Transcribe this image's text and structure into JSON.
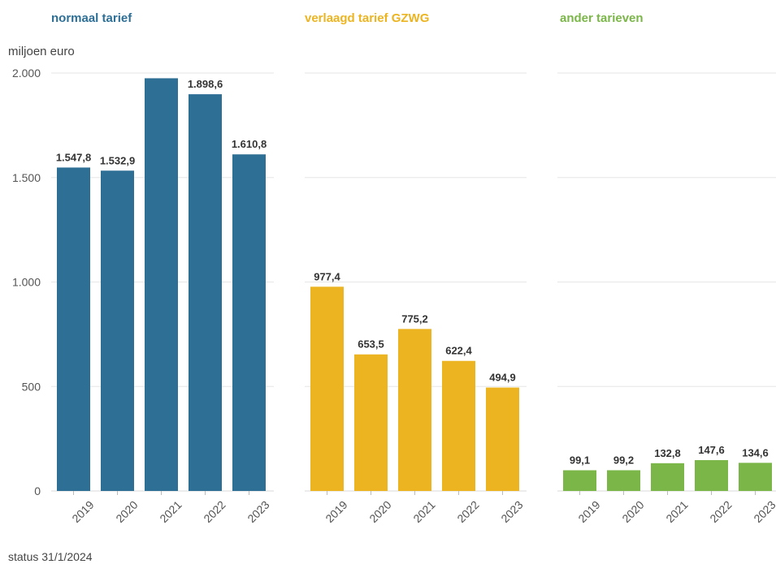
{
  "unit_label": "miljoen euro",
  "footer": "status 31/1/2024",
  "chart_data": [
    {
      "type": "bar",
      "title": "normaal tarief",
      "color": "#2e6f96",
      "categories": [
        "2019",
        "2020",
        "2021",
        "2022",
        "2023"
      ],
      "values": [
        1547.8,
        1532.9,
        1975,
        1898.6,
        1610.8
      ],
      "labels": [
        "1.547,8",
        "1.532,9",
        "",
        "1.898,6",
        "1.610,8"
      ],
      "ylim": [
        0,
        2000
      ],
      "yticks": [
        0,
        500,
        1000,
        1500,
        2000
      ],
      "ytick_labels": [
        "0",
        "500",
        "1.000",
        "1.500",
        "2.000"
      ],
      "grid": true
    },
    {
      "type": "bar",
      "title": "verlaagd tarief GZWG",
      "color": "#ebb420",
      "categories": [
        "2019",
        "2020",
        "2021",
        "2022",
        "2023"
      ],
      "values": [
        977.4,
        653.5,
        775.2,
        622.4,
        494.9
      ],
      "labels": [
        "977,4",
        "653,5",
        "775,2",
        "622,4",
        "494,9"
      ],
      "ylim": [
        0,
        2000
      ],
      "grid": true
    },
    {
      "type": "bar",
      "title": "ander tarieven",
      "color": "#7ab648",
      "categories": [
        "2019",
        "2020",
        "2021",
        "2022",
        "2023"
      ],
      "values": [
        99.1,
        99.2,
        132.8,
        147.6,
        134.6
      ],
      "labels": [
        "99,1",
        "99,2",
        "132,8",
        "147,6",
        "134,6"
      ],
      "ylim": [
        0,
        2000
      ],
      "grid": true
    }
  ]
}
